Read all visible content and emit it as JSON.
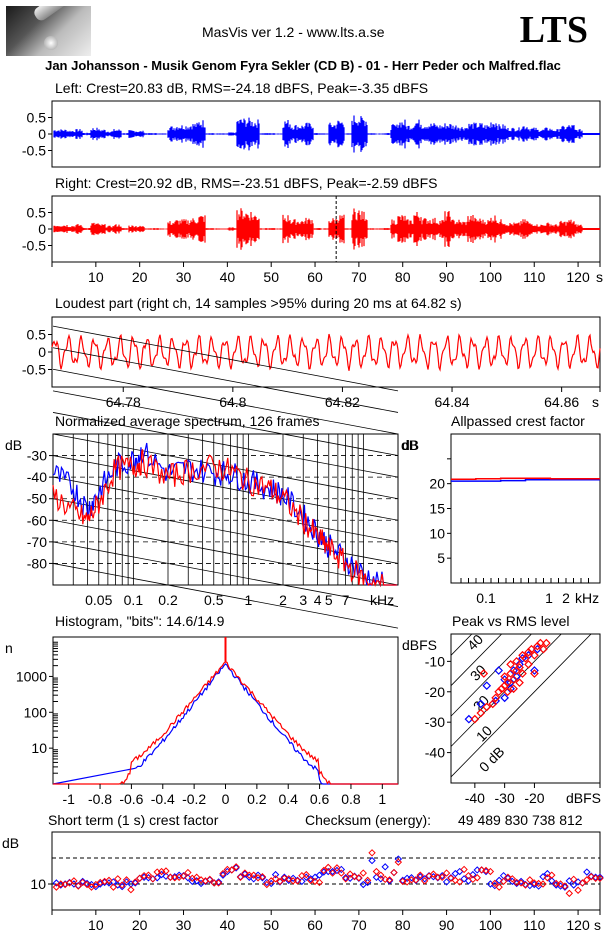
{
  "header": {
    "app_title": "MasVis ver 1.2 - www.lts.a.se",
    "brand": "LTS",
    "logo_icon": "guitar-slide-logo",
    "filename": "Jan Johansson - Musik Genom Fyra Sekler (CD B) - 01 - Herr Peder och Malfred.flac"
  },
  "colors": {
    "left": "#0000ff",
    "right": "#ff0000"
  },
  "chart_data": [
    {
      "id": "left-waveform",
      "type": "area",
      "title": "Left: Crest=20.83 dB, RMS=-24.18 dBFS, Peak=-3.35 dBFS",
      "ylabel": "",
      "yticks": [
        "0.5",
        "0",
        "-0.5"
      ],
      "ylim": [
        -1,
        1
      ],
      "xlim": [
        0,
        125
      ],
      "envelope": [
        0.15,
        0.15,
        0.12,
        0.15,
        0.04,
        0.2,
        0.15,
        0.1,
        0.15,
        0.03,
        0.12,
        0.1,
        0.03,
        0.03,
        0.02,
        0.25,
        0.3,
        0.3,
        0.35,
        0.45,
        0.03,
        0.02,
        0.02,
        0.05,
        0.5,
        0.5,
        0.45,
        0.03,
        0.03,
        0.02,
        0.45,
        0.3,
        0.3,
        0.35,
        0.03,
        0.02,
        0.35,
        0.45,
        0.02,
        0.6,
        0.55,
        0.03,
        0.02,
        0.03,
        0.3,
        0.45,
        0.3,
        0.45,
        0.35,
        0.35,
        0.3,
        0.35,
        0.3,
        0.25,
        0.35,
        0.35,
        0.3,
        0.45,
        0.3,
        0.2,
        0.2,
        0.3,
        0.2,
        0.15,
        0.2,
        0.15,
        0.25,
        0.3,
        0.15,
        0.03
      ],
      "series": [
        {
          "name": "Left",
          "color": "#0000ff"
        }
      ]
    },
    {
      "id": "right-waveform",
      "type": "area",
      "title": "Right: Crest=20.92 dB, RMS=-23.51 dBFS, Peak=-2.59 dBFS",
      "yticks": [
        "0.5",
        "0",
        "-0.5"
      ],
      "ylim": [
        -1,
        1
      ],
      "xlim": [
        0,
        125
      ],
      "xticks": [
        "10",
        "20",
        "30",
        "40",
        "50",
        "60",
        "70",
        "80",
        "90",
        "100",
        "110",
        "120"
      ],
      "xunit": "s",
      "marker_at": 64.82,
      "envelope": [
        0.15,
        0.15,
        0.12,
        0.15,
        0.04,
        0.2,
        0.15,
        0.1,
        0.15,
        0.03,
        0.12,
        0.1,
        0.03,
        0.03,
        0.02,
        0.25,
        0.3,
        0.3,
        0.35,
        0.45,
        0.03,
        0.02,
        0.02,
        0.05,
        0.65,
        0.6,
        0.5,
        0.03,
        0.03,
        0.02,
        0.45,
        0.3,
        0.3,
        0.35,
        0.03,
        0.02,
        0.35,
        0.45,
        0.02,
        0.65,
        0.55,
        0.03,
        0.02,
        0.03,
        0.3,
        0.45,
        0.3,
        0.55,
        0.35,
        0.35,
        0.3,
        0.55,
        0.3,
        0.25,
        0.45,
        0.35,
        0.3,
        0.45,
        0.3,
        0.2,
        0.2,
        0.3,
        0.2,
        0.15,
        0.2,
        0.15,
        0.25,
        0.3,
        0.15,
        0.03
      ],
      "series": [
        {
          "name": "Right",
          "color": "#ff0000"
        }
      ]
    },
    {
      "id": "loudest-part",
      "type": "line",
      "title": "Loudest part (right ch, 14 samples >95% during 20 ms at 64.82 s)",
      "yticks": [
        "0.5",
        "0",
        "-0.5"
      ],
      "ylim": [
        -1,
        1
      ],
      "xlim": [
        64.767,
        64.867
      ],
      "xticks": [
        "64.78",
        "64.8",
        "64.82",
        "64.84",
        "64.86"
      ],
      "xunit": "s",
      "series": [
        {
          "name": "Right",
          "color": "#ff0000"
        }
      ]
    },
    {
      "id": "average-spectrum",
      "type": "line",
      "title": "Normalized average spectrum, 126 frames",
      "ylabel": "dB",
      "yticks": [
        "-30",
        "-40",
        "-50",
        "-60",
        "-70",
        "-80"
      ],
      "ylim": [
        -90,
        -20
      ],
      "xticks": [
        "0.05",
        "0.1",
        "0.2",
        "0.5",
        "1",
        "2",
        "3",
        "4",
        "5",
        "7"
      ],
      "xunit": "kHz",
      "xlim_khz": [
        0.02,
        20
      ],
      "series": [
        {
          "name": "Left",
          "color": "#0000ff",
          "points_khz_db": [
            [
              0.02,
              -38
            ],
            [
              0.03,
              -45
            ],
            [
              0.04,
              -55
            ],
            [
              0.05,
              -47
            ],
            [
              0.07,
              -35
            ],
            [
              0.1,
              -32
            ],
            [
              0.12,
              -28
            ],
            [
              0.2,
              -38
            ],
            [
              0.3,
              -36
            ],
            [
              0.5,
              -38
            ],
            [
              0.7,
              -38
            ],
            [
              1,
              -42
            ],
            [
              1.5,
              -45
            ],
            [
              2,
              -48
            ],
            [
              3,
              -58
            ],
            [
              4,
              -66
            ],
            [
              5,
              -72
            ],
            [
              7,
              -78
            ],
            [
              10,
              -85
            ],
            [
              15,
              -90
            ],
            [
              20,
              -90
            ]
          ]
        },
        {
          "name": "Right",
          "color": "#ff0000",
          "points_khz_db": [
            [
              0.02,
              -48
            ],
            [
              0.03,
              -56
            ],
            [
              0.04,
              -60
            ],
            [
              0.05,
              -52
            ],
            [
              0.07,
              -36
            ],
            [
              0.1,
              -35
            ],
            [
              0.12,
              -33
            ],
            [
              0.2,
              -40
            ],
            [
              0.3,
              -37
            ],
            [
              0.5,
              -35
            ],
            [
              0.7,
              -37
            ],
            [
              1,
              -42
            ],
            [
              1.5,
              -45
            ],
            [
              2,
              -50
            ],
            [
              3,
              -60
            ],
            [
              4,
              -68
            ],
            [
              5,
              -73
            ],
            [
              7,
              -80
            ],
            [
              10,
              -87
            ],
            [
              15,
              -90
            ],
            [
              20,
              -90
            ]
          ]
        }
      ]
    },
    {
      "id": "allpassed-crest",
      "type": "line",
      "title": "Allpassed crest factor",
      "ylabel": "dB",
      "yticks": [
        "20",
        "15",
        "10",
        "5"
      ],
      "ylim": [
        0,
        30
      ],
      "xticks": [
        "0.1",
        "1",
        "2"
      ],
      "xunit": "kHz",
      "series": [
        {
          "name": "Left",
          "color": "#0000ff",
          "values_db": [
            20.5,
            20.5,
            20.6,
            20.8,
            20.8,
            20.8
          ]
        },
        {
          "name": "Right",
          "color": "#ff0000",
          "values_db": [
            20.9,
            21.0,
            21.1,
            21.1,
            21.0,
            21.0
          ]
        }
      ]
    },
    {
      "id": "histogram",
      "type": "line",
      "title": "Histogram, \"bits\": 14.6/14.9",
      "ylabel": "n",
      "yticks": [
        "1000",
        "100",
        "10"
      ],
      "yscale": "log",
      "xticks": [
        "-1",
        "-0.8",
        "-0.6",
        "-0.4",
        "-0.2",
        "0",
        "0.2",
        "0.4",
        "0.6",
        "0.8",
        "1"
      ],
      "xlim": [
        -1.1,
        1.1
      ],
      "series": [
        {
          "name": "Left",
          "color": "#0000ff",
          "peak_count": 2200,
          "extent": [
            -0.58,
            0.63
          ]
        },
        {
          "name": "Right",
          "color": "#ff0000",
          "peak_count": 2500,
          "extent": [
            -0.74,
            0.74
          ]
        }
      ]
    },
    {
      "id": "peak-vs-rms",
      "type": "scatter",
      "title": "Peak vs RMS level",
      "ylabel": "dBFS",
      "xlabel": "dBFS",
      "yticks": [
        "-10",
        "-20",
        "-30",
        "-40"
      ],
      "xticks": [
        "-40",
        "-30",
        "-20"
      ],
      "diagonal_labels": [
        "40",
        "30",
        "20",
        "10",
        "0 dB"
      ],
      "series": [
        {
          "name": "Left",
          "color": "#0000ff",
          "rms_peak": [
            [
              -42,
              -29
            ],
            [
              -38,
              -24
            ],
            [
              -36,
              -18
            ],
            [
              -33,
              -23
            ],
            [
              -32,
              -13
            ],
            [
              -30,
              -16
            ],
            [
              -28,
              -17
            ],
            [
              -27,
              -13
            ],
            [
              -25,
              -11
            ],
            [
              -24,
              -9
            ],
            [
              -22,
              -8
            ],
            [
              -20,
              -13
            ],
            [
              -19,
              -6
            ],
            [
              -30,
              -22
            ],
            [
              -28,
              -19
            ],
            [
              -26,
              -15
            ]
          ]
        },
        {
          "name": "Right",
          "color": "#ff0000",
          "rms_peak": [
            [
              -40,
              -29
            ],
            [
              -38,
              -27
            ],
            [
              -37,
              -14
            ],
            [
              -36,
              -25
            ],
            [
              -34,
              -24
            ],
            [
              -33,
              -22
            ],
            [
              -32,
              -20
            ],
            [
              -31,
              -19
            ],
            [
              -30,
              -18
            ],
            [
              -30,
              -15
            ],
            [
              -29,
              -17
            ],
            [
              -28,
              -14
            ],
            [
              -28,
              -11
            ],
            [
              -27,
              -16
            ],
            [
              -26,
              -13
            ],
            [
              -26,
              -10
            ],
            [
              -25,
              -12
            ],
            [
              -24,
              -8
            ],
            [
              -24,
              -14
            ],
            [
              -23,
              -9
            ],
            [
              -22,
              -7
            ],
            [
              -22,
              -11
            ],
            [
              -21,
              -6
            ],
            [
              -20,
              -14
            ],
            [
              -20,
              -8
            ],
            [
              -19,
              -5
            ],
            [
              -18,
              -4
            ],
            [
              -17,
              -6
            ],
            [
              -16,
              -4
            ],
            [
              -29,
              -20
            ],
            [
              -27,
              -19
            ],
            [
              -25,
              -17
            ]
          ]
        }
      ]
    },
    {
      "id": "short-term-crest",
      "type": "scatter",
      "title": "Short term (1 s) crest factor",
      "ylabel": "dB",
      "yticks": [
        "10"
      ],
      "ylim": [
        5,
        20
      ],
      "xlim": [
        0,
        125
      ],
      "xticks": [
        "10",
        "20",
        "30",
        "40",
        "50",
        "60",
        "70",
        "80",
        "90",
        "100",
        "110",
        "120"
      ],
      "xunit": "s",
      "series": [
        {
          "name": "Left",
          "color": "#0000ff",
          "values": [
            10.2,
            9.8,
            10.0,
            10.3,
            10.0,
            9.7,
            10.5,
            10.1,
            9.9,
            9.5,
            10.0,
            10.3,
            10.2,
            10.4,
            9.8,
            9.5,
            10.4,
            10.0,
            10.2,
            11.1,
            11.3,
            11.2,
            11.0,
            11.2,
            11.8,
            11.5,
            11.3,
            11.4,
            11.7,
            11.6,
            11.2,
            10.5,
            10.6,
            10.1,
            10.5,
            10.8,
            10.2,
            10.4,
            11.7,
            12.4,
            12.7,
            13.1,
            11.4,
            11.9,
            11.3,
            11.0,
            11.7,
            11.2,
            10.3,
            10.1,
            11.8,
            10.4,
            11.3,
            10.7,
            11.1,
            10.7,
            10.5,
            11.3,
            11.0,
            11.3,
            11.7,
            12.3,
            12.4,
            12.4,
            12.6,
            12.8,
            11.2,
            11.1,
            11.5,
            11.1,
            9.9,
            10.3,
            14.5,
            11.3,
            11.0,
            13.3,
            10.6,
            12.2,
            14.8,
            10.7,
            11.1,
            11.2,
            10.7,
            11.4,
            11.0,
            11.6,
            11.4,
            11.2,
            11.6,
            10.4,
            11.2,
            12.0,
            12.4,
            11.0,
            10.6,
            11.8,
            12.7,
            12.7,
            12.4,
            10.0,
            9.7,
            10.7,
            11.6,
            11.1,
            10.5,
            10.1,
            10.5,
            9.9,
            9.7,
            9.9,
            9.6,
            11.4,
            12.0,
            10.6,
            9.8,
            9.6,
            9.4,
            10.6,
            9.8,
            10.4,
            10.2,
            12.3,
            11.5,
            11.3,
            11.3
          ]
        },
        {
          "name": "Right",
          "color": "#ff0000",
          "values": [
            9.4,
            10.0,
            9.9,
            10.2,
            10.6,
            9.6,
            10.3,
            9.9,
            9.4,
            9.9,
            10.3,
            10.5,
            10.7,
            9.4,
            11.0,
            9.8,
            10.8,
            8.9,
            10.4,
            11.1,
            11.6,
            11.7,
            11.0,
            12.3,
            12.4,
            12.5,
            11.3,
            11.2,
            11.3,
            11.5,
            12.2,
            11.1,
            11.3,
            10.8,
            10.6,
            10.9,
            10.2,
            10.2,
            12.0,
            12.8,
            12.7,
            13.3,
            11.3,
            12.1,
            11.7,
            11.7,
            11.2,
            11.4,
            9.9,
            10.6,
            11.0,
            10.5,
            11.1,
            11.0,
            10.6,
            10.6,
            11.6,
            11.8,
            10.7,
            10.5,
            10.3,
            12.6,
            13.2,
            12.1,
            13.1,
            12.1,
            11.0,
            11.9,
            11.4,
            11.2,
            12.1,
            10.7,
            16.0,
            12.4,
            11.7,
            10.9,
            10.8,
            12.2,
            14.2,
            10.5,
            10.4,
            10.8,
            10.8,
            11.7,
            10.6,
            11.5,
            11.9,
            11.3,
            11.3,
            12.1,
            11.1,
            10.7,
            10.4,
            12.8,
            11.6,
            10.9,
            11.2,
            12.7,
            12.6,
            12.4,
            10.1,
            9.4,
            10.5,
            11.3,
            11.0,
            10.3,
            10.2,
            9.8,
            10.8,
            10.2,
            10.1,
            10.0,
            11.2,
            11.7,
            10.1,
            10.0,
            9.6,
            8.2,
            10.9,
            8.8,
            10.2,
            10.8,
            11.4,
            11.1,
            11.1
          ]
        }
      ],
      "annotation": {
        "label": "Checksum (energy):",
        "value": "49 489 830 738 812"
      }
    }
  ]
}
